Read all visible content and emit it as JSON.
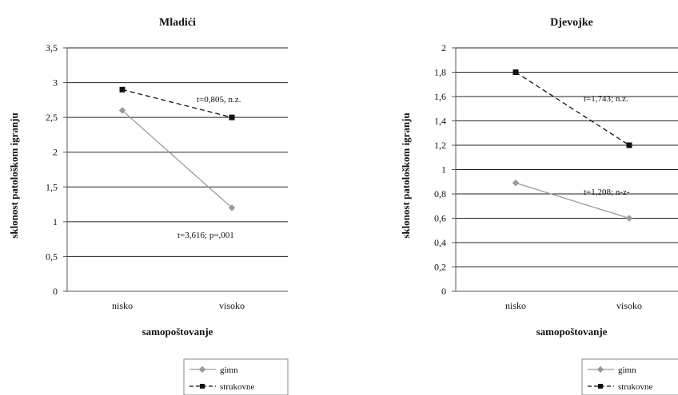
{
  "chart_data": [
    {
      "type": "line",
      "title": "Mladići",
      "xlabel": "samopoštovanje",
      "ylabel": "sklonost patološkom igranju",
      "categories": [
        "nisko",
        "visoko"
      ],
      "ylim": [
        0,
        3.5
      ],
      "yticks": [
        0,
        0.5,
        1,
        1.5,
        2,
        2.5,
        3,
        3.5
      ],
      "ytick_labels": [
        "0",
        "0,5",
        "1",
        "1,5",
        "2",
        "2,5",
        "3",
        "3,5"
      ],
      "grid": true,
      "series": [
        {
          "name": "gimn",
          "values": [
            2.6,
            1.2
          ],
          "color": "#9a9a9a",
          "dash": "solid",
          "marker": "diamond"
        },
        {
          "name": "strukovne",
          "values": [
            2.9,
            2.5
          ],
          "color": "#111111",
          "dash": "dashed",
          "marker": "square"
        }
      ],
      "annotations": [
        "t=0,805, n.z.",
        "t=3,616; p=,001"
      ],
      "legend": {
        "placement": "bottom-right",
        "entries": [
          "gimn",
          "strukovne"
        ]
      }
    },
    {
      "type": "line",
      "title": "Djevojke",
      "xlabel": "samopoštovanje",
      "ylabel": "sklonost patološkom igranju",
      "categories": [
        "nisko",
        "visoko"
      ],
      "ylim": [
        0,
        2
      ],
      "yticks": [
        0,
        0.2,
        0.4,
        0.6,
        0.8,
        1,
        1.2,
        1.4,
        1.6,
        1.8,
        2
      ],
      "ytick_labels": [
        "0",
        "0,2",
        "0,4",
        "0,6",
        "0,8",
        "1",
        "1,2",
        "1,4",
        "1,6",
        "1,8",
        "2"
      ],
      "grid": true,
      "series": [
        {
          "name": "gimn",
          "values": [
            0.89,
            0.6
          ],
          "color": "#9a9a9a",
          "dash": "solid",
          "marker": "diamond"
        },
        {
          "name": "strukovne",
          "values": [
            1.8,
            1.2
          ],
          "color": "#111111",
          "dash": "dashed",
          "marker": "square"
        }
      ],
      "annotations": [
        "t=1,743; n.z.",
        "t=1,208; n-z-"
      ],
      "legend": {
        "placement": "bottom-right",
        "entries": [
          "gimn",
          "strukovne"
        ]
      }
    }
  ]
}
